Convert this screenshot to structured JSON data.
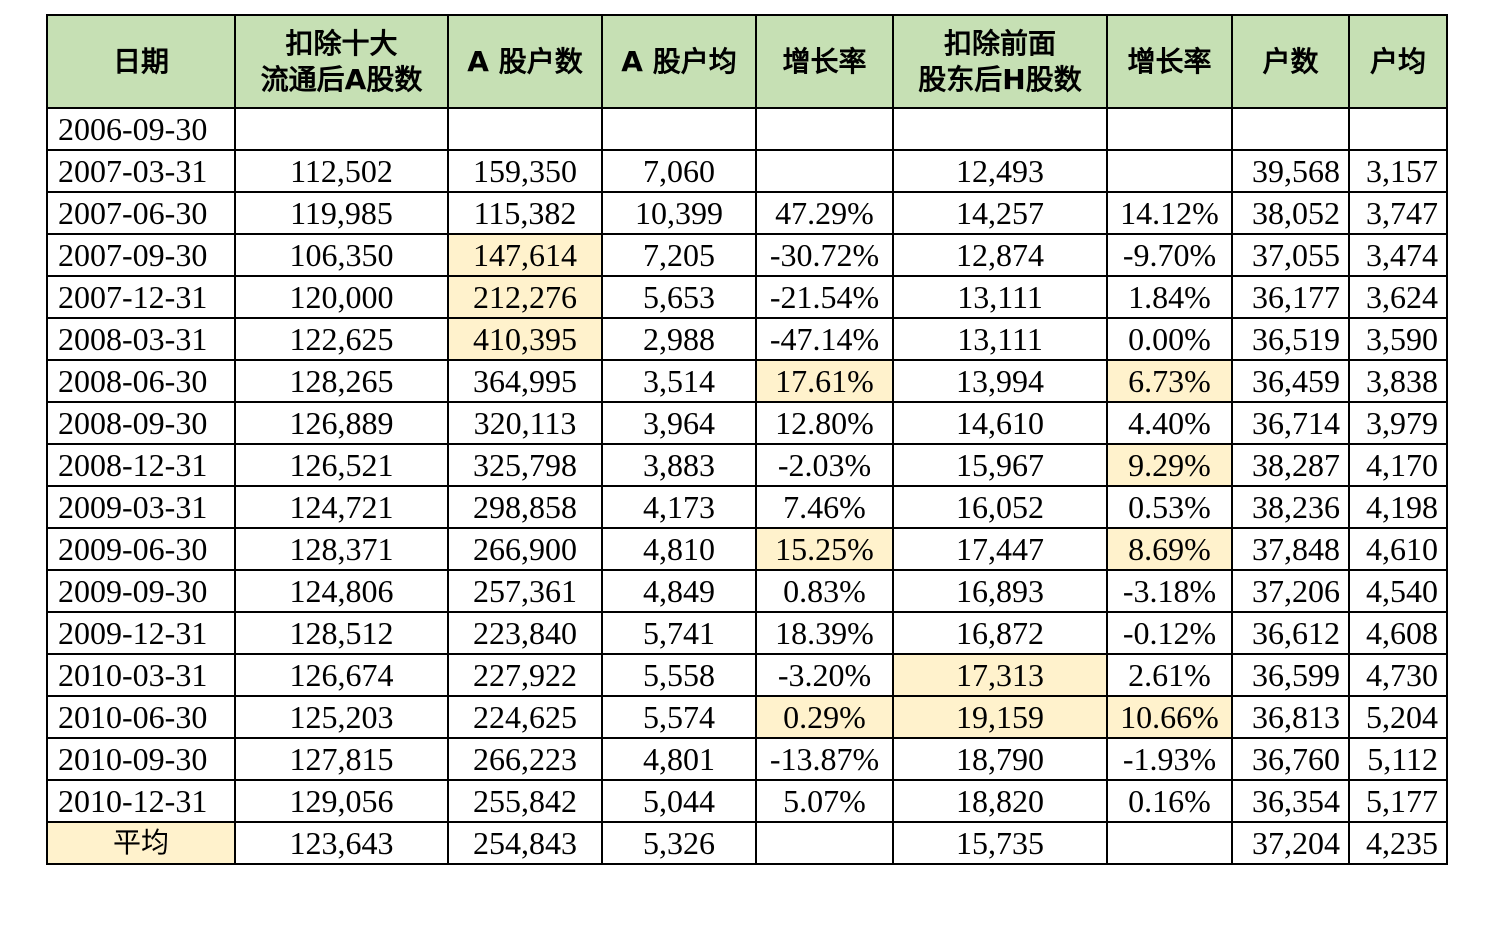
{
  "colors": {
    "header_bg": "#c6e0b4",
    "highlight_bg": "#fff2cc",
    "border": "#000000"
  },
  "table": {
    "headers": [
      [
        "日期"
      ],
      [
        "扣除十大",
        "流通后A股数"
      ],
      [
        "A 股户数"
      ],
      [
        "A 股户均"
      ],
      [
        "增长率"
      ],
      [
        "扣除前面",
        "股东后H股数"
      ],
      [
        "增长率"
      ],
      [
        "户数"
      ],
      [
        "户均"
      ]
    ],
    "rows": [
      [
        "2006-09-30",
        "",
        "",
        "",
        "",
        "",
        "",
        "",
        ""
      ],
      [
        "2007-03-31",
        "112,502",
        "159,350",
        "7,060",
        "",
        "12,493",
        "",
        "39,568",
        "3,157"
      ],
      [
        "2007-06-30",
        "119,985",
        "115,382",
        "10,399",
        "47.29%",
        "14,257",
        "14.12%",
        "38,052",
        "3,747"
      ],
      [
        "2007-09-30",
        "106,350",
        "147,614",
        "7,205",
        "-30.72%",
        "12,874",
        "-9.70%",
        "37,055",
        "3,474"
      ],
      [
        "2007-12-31",
        "120,000",
        "212,276",
        "5,653",
        "-21.54%",
        "13,111",
        "1.84%",
        "36,177",
        "3,624"
      ],
      [
        "2008-03-31",
        "122,625",
        "410,395",
        "2,988",
        "-47.14%",
        "13,111",
        "0.00%",
        "36,519",
        "3,590"
      ],
      [
        "2008-06-30",
        "128,265",
        "364,995",
        "3,514",
        "17.61%",
        "13,994",
        "6.73%",
        "36,459",
        "3,838"
      ],
      [
        "2008-09-30",
        "126,889",
        "320,113",
        "3,964",
        "12.80%",
        "14,610",
        "4.40%",
        "36,714",
        "3,979"
      ],
      [
        "2008-12-31",
        "126,521",
        "325,798",
        "3,883",
        "-2.03%",
        "15,967",
        "9.29%",
        "38,287",
        "4,170"
      ],
      [
        "2009-03-31",
        "124,721",
        "298,858",
        "4,173",
        "7.46%",
        "16,052",
        "0.53%",
        "38,236",
        "4,198"
      ],
      [
        "2009-06-30",
        "128,371",
        "266,900",
        "4,810",
        "15.25%",
        "17,447",
        "8.69%",
        "37,848",
        "4,610"
      ],
      [
        "2009-09-30",
        "124,806",
        "257,361",
        "4,849",
        "0.83%",
        "16,893",
        "-3.18%",
        "37,206",
        "4,540"
      ],
      [
        "2009-12-31",
        "128,512",
        "223,840",
        "5,741",
        "18.39%",
        "16,872",
        "-0.12%",
        "36,612",
        "4,608"
      ],
      [
        "2010-03-31",
        "126,674",
        "227,922",
        "5,558",
        "-3.20%",
        "17,313",
        "2.61%",
        "36,599",
        "4,730"
      ],
      [
        "2010-06-30",
        "125,203",
        "224,625",
        "5,574",
        "0.29%",
        "19,159",
        "10.66%",
        "36,813",
        "5,204"
      ],
      [
        "2010-09-30",
        "127,815",
        "266,223",
        "4,801",
        "-13.87%",
        "18,790",
        "-1.93%",
        "36,760",
        "5,112"
      ],
      [
        "2010-12-31",
        "129,056",
        "255,842",
        "5,044",
        "5.07%",
        "18,820",
        "0.16%",
        "36,354",
        "5,177"
      ],
      [
        "平均",
        "123,643",
        "254,843",
        "5,326",
        "",
        "15,735",
        "",
        "37,204",
        "4,235"
      ]
    ],
    "highlighted_cells": [
      [
        3,
        2
      ],
      [
        4,
        2
      ],
      [
        5,
        2
      ],
      [
        6,
        4
      ],
      [
        10,
        4
      ],
      [
        14,
        4
      ],
      [
        6,
        6
      ],
      [
        8,
        6
      ],
      [
        10,
        6
      ],
      [
        14,
        6
      ],
      [
        13,
        5
      ],
      [
        14,
        5
      ],
      [
        17,
        0
      ]
    ]
  }
}
